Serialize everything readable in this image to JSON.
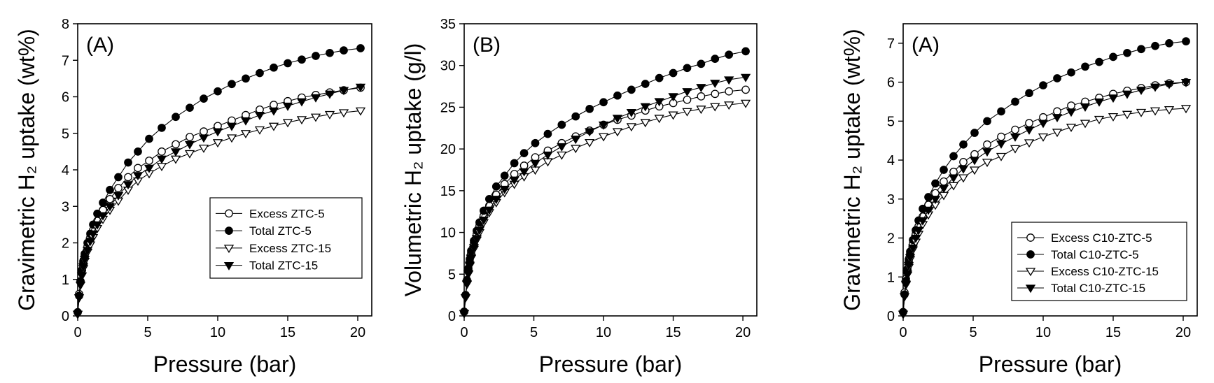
{
  "chart_data": [
    {
      "type": "line",
      "panel_label": "(A)",
      "xlabel": "Pressure (bar)",
      "ylabel": "Gravimetric H₂ uptake (wt%)",
      "xlim": [
        0,
        21
      ],
      "ylim": [
        0,
        8
      ],
      "xticks": [
        0,
        5,
        10,
        15,
        20
      ],
      "yticks": [
        0,
        1,
        2,
        3,
        4,
        5,
        6,
        7,
        8
      ],
      "grid": false,
      "legend_position": "center-right",
      "series": [
        {
          "name": "Excess ZTC-5",
          "marker": "circle-open",
          "x": [
            0,
            0.1,
            0.2,
            0.3,
            0.4,
            0.5,
            0.7,
            0.9,
            1.1,
            1.4,
            1.8,
            2.3,
            2.9,
            3.6,
            4.3,
            5.1,
            6,
            7,
            8,
            9,
            10,
            11,
            12,
            13,
            14,
            15,
            16,
            17,
            18,
            19,
            20.2
          ],
          "y": [
            0.1,
            0.6,
            0.95,
            1.25,
            1.45,
            1.65,
            1.9,
            2.15,
            2.35,
            2.6,
            2.9,
            3.2,
            3.5,
            3.8,
            4.05,
            4.25,
            4.5,
            4.7,
            4.9,
            5.05,
            5.2,
            5.35,
            5.5,
            5.65,
            5.78,
            5.88,
            5.98,
            6.05,
            6.12,
            6.18,
            6.25
          ]
        },
        {
          "name": "Total ZTC-5",
          "marker": "circle-filled",
          "x": [
            0,
            0.1,
            0.2,
            0.3,
            0.4,
            0.5,
            0.7,
            0.9,
            1.1,
            1.4,
            1.8,
            2.3,
            2.9,
            3.6,
            4.3,
            5.1,
            6,
            7,
            8,
            9,
            10,
            11,
            12,
            13,
            14,
            15,
            16,
            17,
            18,
            19,
            20.2
          ],
          "y": [
            0.1,
            0.55,
            0.95,
            1.25,
            1.5,
            1.7,
            2.0,
            2.25,
            2.5,
            2.8,
            3.1,
            3.45,
            3.8,
            4.2,
            4.5,
            4.85,
            5.15,
            5.45,
            5.7,
            5.95,
            6.15,
            6.35,
            6.5,
            6.65,
            6.8,
            6.92,
            7.02,
            7.12,
            7.2,
            7.27,
            7.33
          ]
        },
        {
          "name": "Excess ZTC-15",
          "marker": "triangle-down-open",
          "x": [
            0,
            0.1,
            0.2,
            0.3,
            0.4,
            0.5,
            0.7,
            0.9,
            1.1,
            1.4,
            1.8,
            2.3,
            2.9,
            3.6,
            4.3,
            5.1,
            6,
            7,
            8,
            9,
            10,
            11,
            12,
            13,
            14,
            15,
            16,
            17,
            18,
            19,
            20.2
          ],
          "y": [
            0.05,
            0.5,
            0.85,
            1.1,
            1.3,
            1.5,
            1.75,
            1.95,
            2.15,
            2.4,
            2.65,
            2.9,
            3.15,
            3.45,
            3.7,
            3.9,
            4.1,
            4.3,
            4.45,
            4.6,
            4.75,
            4.88,
            5.0,
            5.1,
            5.2,
            5.3,
            5.38,
            5.45,
            5.52,
            5.57,
            5.62
          ]
        },
        {
          "name": "Total ZTC-15",
          "marker": "triangle-down-filled",
          "x": [
            0,
            0.1,
            0.2,
            0.3,
            0.4,
            0.5,
            0.7,
            0.9,
            1.1,
            1.4,
            1.8,
            2.3,
            2.9,
            3.6,
            4.3,
            5.1,
            6,
            7,
            8,
            9,
            10,
            11,
            12,
            13,
            14,
            15,
            16,
            17,
            18,
            19,
            20.2
          ],
          "y": [
            0.05,
            0.5,
            0.85,
            1.1,
            1.35,
            1.55,
            1.8,
            2.05,
            2.25,
            2.5,
            2.75,
            3.0,
            3.3,
            3.6,
            3.85,
            4.05,
            4.3,
            4.5,
            4.7,
            4.88,
            5.05,
            5.2,
            5.35,
            5.5,
            5.62,
            5.75,
            5.87,
            5.98,
            6.08,
            6.18,
            6.27
          ]
        }
      ]
    },
    {
      "type": "line",
      "panel_label": "(B)",
      "xlabel": "Pressure (bar)",
      "ylabel": "Volumetric H₂ uptake (g/l)",
      "xlim": [
        0,
        21
      ],
      "ylim": [
        0,
        35
      ],
      "xticks": [
        0,
        5,
        10,
        15,
        20
      ],
      "yticks": [
        0,
        5,
        10,
        15,
        20,
        25,
        30,
        35
      ],
      "grid": false,
      "legend_position": "none",
      "series": [
        {
          "name": "Excess ZTC-5",
          "marker": "circle-open",
          "x": [
            0,
            0.1,
            0.2,
            0.3,
            0.4,
            0.5,
            0.7,
            0.9,
            1.1,
            1.4,
            1.8,
            2.3,
            2.9,
            3.6,
            4.3,
            5.1,
            6,
            7,
            8,
            9,
            10,
            11,
            12,
            13,
            14,
            15,
            16,
            17,
            18,
            19,
            20.2
          ],
          "y": [
            0.5,
            2.5,
            4.2,
            5.5,
            6.5,
            7.5,
            8.7,
            9.8,
            10.8,
            12.0,
            13.2,
            14.5,
            15.8,
            17.0,
            18.0,
            19.0,
            19.8,
            20.7,
            21.5,
            22.2,
            22.9,
            23.5,
            24.0,
            24.6,
            25.1,
            25.5,
            25.9,
            26.3,
            26.6,
            26.9,
            27.1
          ]
        },
        {
          "name": "Total ZTC-5",
          "marker": "circle-filled",
          "x": [
            0,
            0.1,
            0.2,
            0.3,
            0.4,
            0.5,
            0.7,
            0.9,
            1.1,
            1.4,
            1.8,
            2.3,
            2.9,
            3.6,
            4.3,
            5.1,
            6,
            7,
            8,
            9,
            10,
            11,
            12,
            13,
            14,
            15,
            16,
            17,
            18,
            19,
            20.2
          ],
          "y": [
            0.5,
            2.5,
            4.3,
            5.7,
            6.8,
            7.8,
            9.0,
            10.2,
            11.2,
            12.6,
            14.0,
            15.5,
            16.8,
            18.3,
            19.5,
            20.7,
            21.8,
            22.9,
            23.9,
            24.8,
            25.6,
            26.4,
            27.1,
            27.8,
            28.5,
            29.1,
            29.7,
            30.2,
            30.8,
            31.3,
            31.7
          ]
        },
        {
          "name": "Excess ZTC-15",
          "marker": "triangle-down-open",
          "x": [
            0,
            0.1,
            0.2,
            0.3,
            0.4,
            0.5,
            0.7,
            0.9,
            1.1,
            1.4,
            1.8,
            2.3,
            2.9,
            3.6,
            4.3,
            5.1,
            6,
            7,
            8,
            9,
            10,
            11,
            12,
            13,
            14,
            15,
            16,
            17,
            18,
            19,
            20.2
          ],
          "y": [
            0.3,
            2.2,
            3.8,
            5.0,
            6.0,
            6.9,
            8.0,
            9.1,
            10.0,
            11.2,
            12.4,
            13.6,
            14.8,
            15.8,
            16.7,
            17.5,
            18.5,
            19.3,
            20.1,
            20.8,
            21.5,
            22.1,
            22.7,
            23.2,
            23.7,
            24.1,
            24.5,
            24.8,
            25.1,
            25.3,
            25.5
          ]
        },
        {
          "name": "Total ZTC-15",
          "marker": "triangle-down-filled",
          "x": [
            0,
            0.1,
            0.2,
            0.3,
            0.4,
            0.5,
            0.7,
            0.9,
            1.1,
            1.4,
            1.8,
            2.3,
            2.9,
            3.6,
            4.3,
            5.1,
            6,
            7,
            8,
            9,
            10,
            11,
            12,
            13,
            14,
            15,
            16,
            17,
            18,
            19,
            20.2
          ],
          "y": [
            0.3,
            2.2,
            3.9,
            5.1,
            6.1,
            7.0,
            8.2,
            9.3,
            10.3,
            11.5,
            12.7,
            14.0,
            15.2,
            16.3,
            17.3,
            18.3,
            19.3,
            20.3,
            21.2,
            22.1,
            22.9,
            23.7,
            24.4,
            25.1,
            25.7,
            26.3,
            26.9,
            27.4,
            27.9,
            28.3,
            28.6
          ]
        }
      ]
    },
    {
      "type": "line",
      "panel_label": "(A)",
      "xlabel": "Pressure (bar)",
      "ylabel": "Gravimetric H₂ uptake (wt%)",
      "xlim": [
        0,
        21
      ],
      "ylim": [
        0,
        7.5
      ],
      "xticks": [
        0,
        5,
        10,
        15,
        20
      ],
      "yticks": [
        0,
        1,
        2,
        3,
        4,
        5,
        6,
        7
      ],
      "grid": false,
      "legend_position": "bottom-right",
      "series": [
        {
          "name": "Excess C10-ZTC-5",
          "marker": "circle-open",
          "x": [
            0,
            0.1,
            0.2,
            0.3,
            0.4,
            0.5,
            0.7,
            0.9,
            1.1,
            1.4,
            1.8,
            2.3,
            2.9,
            3.6,
            4.3,
            5.1,
            6,
            7,
            8,
            9,
            10,
            11,
            12,
            13,
            14,
            15,
            16,
            17,
            18,
            19,
            20.2
          ],
          "y": [
            0.1,
            0.6,
            0.95,
            1.2,
            1.4,
            1.6,
            1.85,
            2.1,
            2.3,
            2.55,
            2.85,
            3.15,
            3.45,
            3.7,
            3.95,
            4.15,
            4.4,
            4.6,
            4.78,
            4.95,
            5.1,
            5.25,
            5.4,
            5.5,
            5.6,
            5.7,
            5.78,
            5.85,
            5.92,
            5.97,
            6.0
          ]
        },
        {
          "name": "Total C10-ZTC-5",
          "marker": "circle-filled",
          "x": [
            0,
            0.1,
            0.2,
            0.3,
            0.4,
            0.5,
            0.7,
            0.9,
            1.1,
            1.4,
            1.8,
            2.3,
            2.9,
            3.6,
            4.3,
            5.1,
            6,
            7,
            8,
            9,
            10,
            11,
            12,
            13,
            14,
            15,
            16,
            17,
            18,
            19,
            20.2
          ],
          "y": [
            0.1,
            0.55,
            0.9,
            1.2,
            1.45,
            1.65,
            1.95,
            2.2,
            2.45,
            2.75,
            3.05,
            3.4,
            3.75,
            4.1,
            4.4,
            4.7,
            5.0,
            5.25,
            5.5,
            5.72,
            5.92,
            6.1,
            6.25,
            6.4,
            6.52,
            6.65,
            6.75,
            6.85,
            6.93,
            7.0,
            7.05
          ]
        },
        {
          "name": "Excess C10-ZTC-15",
          "marker": "triangle-down-open",
          "x": [
            0,
            0.1,
            0.2,
            0.3,
            0.4,
            0.5,
            0.7,
            0.9,
            1.1,
            1.4,
            1.8,
            2.3,
            2.9,
            3.6,
            4.3,
            5.1,
            6,
            7,
            8,
            9,
            10,
            11,
            12,
            13,
            14,
            15,
            16,
            17,
            18,
            19,
            20.2
          ],
          "y": [
            0.05,
            0.5,
            0.8,
            1.05,
            1.25,
            1.45,
            1.7,
            1.9,
            2.1,
            2.35,
            2.6,
            2.85,
            3.1,
            3.35,
            3.55,
            3.75,
            3.95,
            4.1,
            4.3,
            4.45,
            4.6,
            4.72,
            4.85,
            4.95,
            5.05,
            5.12,
            5.18,
            5.23,
            5.27,
            5.3,
            5.33
          ]
        },
        {
          "name": "Total C10-ZTC-15",
          "marker": "triangle-down-filled",
          "x": [
            0,
            0.1,
            0.2,
            0.3,
            0.4,
            0.5,
            0.7,
            0.9,
            1.1,
            1.4,
            1.8,
            2.3,
            2.9,
            3.6,
            4.3,
            5.1,
            6,
            7,
            8,
            9,
            10,
            11,
            12,
            13,
            14,
            15,
            16,
            17,
            18,
            19,
            20.2
          ],
          "y": [
            0.05,
            0.5,
            0.82,
            1.08,
            1.3,
            1.5,
            1.75,
            2.0,
            2.2,
            2.45,
            2.72,
            3.0,
            3.28,
            3.55,
            3.78,
            4.0,
            4.22,
            4.42,
            4.6,
            4.78,
            4.95,
            5.1,
            5.24,
            5.37,
            5.5,
            5.6,
            5.7,
            5.8,
            5.88,
            5.95,
            6.0
          ]
        }
      ]
    }
  ]
}
